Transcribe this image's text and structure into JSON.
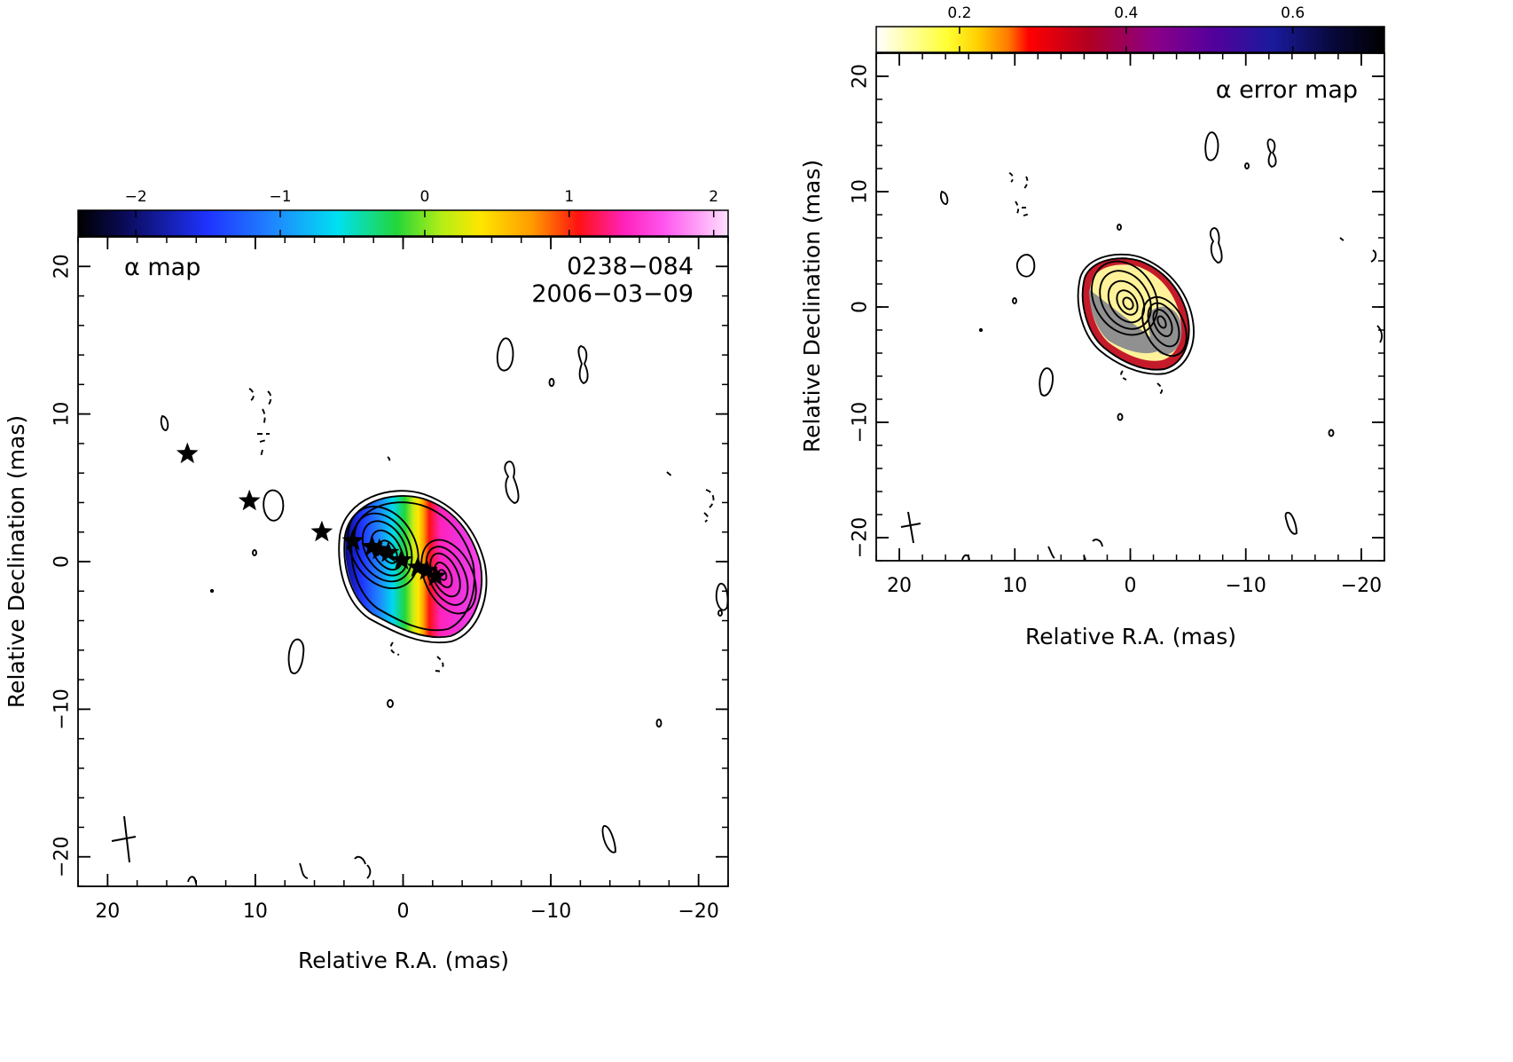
{
  "chart_data": [
    {
      "type": "heatmap",
      "panel": "left",
      "title": "α map",
      "annotations": [
        "0238−084",
        "2006−03−09"
      ],
      "xlabel": "Relative R.A. (mas)",
      "ylabel": "Relative Declination (mas)",
      "xlim": [
        22,
        -22
      ],
      "ylim": [
        -22,
        22
      ],
      "xticks": [
        20,
        10,
        0,
        -10,
        -20
      ],
      "xtick_labels": [
        "20",
        "10",
        "0",
        "−10",
        "−20"
      ],
      "yticks": [
        20,
        10,
        0,
        -10,
        -20
      ],
      "ytick_labels": [
        "20",
        "10",
        "0",
        "−10",
        "−20"
      ],
      "colorbar": {
        "range": [
          -2.4,
          2.1
        ],
        "ticks": [
          -2,
          -1,
          0,
          1,
          2
        ],
        "tick_labels": [
          "−2",
          "−1",
          "0",
          "1",
          "2"
        ],
        "colormap": "black-blue-cyan-green-yellow-orange-red-magenta-pink"
      },
      "color_gradient": {
        "alpha_at_east_edge": -2.1,
        "alpha_at_west_edge": 1.8
      },
      "component_markers": [
        {
          "ra": 14.6,
          "dec": 7.3
        },
        {
          "ra": 10.4,
          "dec": 4.1
        },
        {
          "ra": 5.5,
          "dec": 2.0
        },
        {
          "ra": 3.4,
          "dec": 1.4
        },
        {
          "ra": 2.1,
          "dec": 1.0
        },
        {
          "ra": 1.6,
          "dec": 0.8
        },
        {
          "ra": 1.0,
          "dec": 0.6
        },
        {
          "ra": 0.1,
          "dec": 0.1
        },
        {
          "ra": -1.0,
          "dec": -0.4
        },
        {
          "ra": -1.6,
          "dec": -0.6
        },
        {
          "ra": -2.2,
          "dec": -1.0
        }
      ],
      "beam": {
        "ra": 19.0,
        "dec": -19.0
      },
      "grid": false,
      "legend": "none"
    },
    {
      "type": "heatmap",
      "panel": "right",
      "title": "α error map",
      "xlabel": "Relative R.A. (mas)",
      "ylabel": "Relative Declination (mas)",
      "xlim": [
        22,
        -22
      ],
      "ylim": [
        -22,
        22
      ],
      "xticks": [
        20,
        10,
        0,
        -10,
        -20
      ],
      "xtick_labels": [
        "20",
        "10",
        "0",
        "−10",
        "−20"
      ],
      "yticks": [
        20,
        10,
        0,
        -10,
        -20
      ],
      "ytick_labels": [
        "20",
        "10",
        "0",
        "−10",
        "−20"
      ],
      "colorbar": {
        "range": [
          0.1,
          0.71
        ],
        "ticks": [
          0.2,
          0.4,
          0.6
        ],
        "tick_labels": [
          "0.2",
          "0.4",
          "0.6"
        ],
        "colormap": "white-yellow-orange-red-crimson-purple-navy-black"
      },
      "beam": {
        "ra": 19.0,
        "dec": -19.0
      },
      "grid": false,
      "legend": "none"
    }
  ],
  "colors": {
    "axes": "#000000",
    "background": "#ffffff"
  }
}
